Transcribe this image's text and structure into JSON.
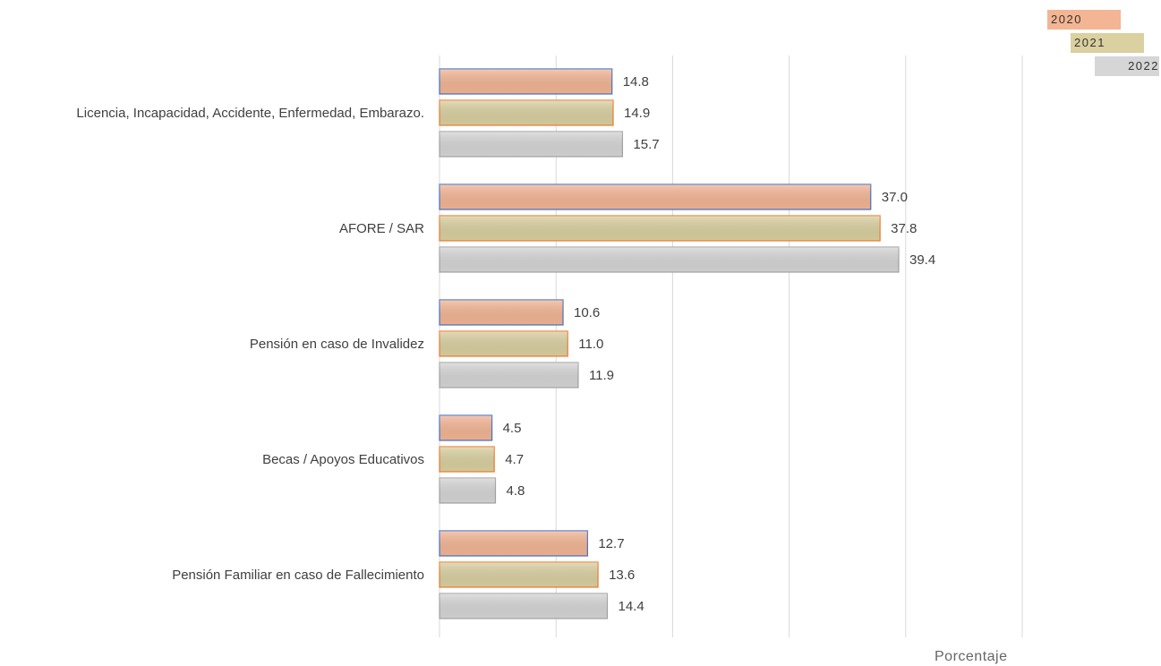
{
  "chart_data": {
    "type": "bar",
    "orientation": "horizontal",
    "categories": [
      "Licencia, Incapacidad, Accidente, Enfermedad, Embarazo.",
      "AFORE / SAR",
      "Pensión en caso de Invalidez",
      "Becas / Apoyos Educativos",
      "Pensión Familiar en caso de Fallecimiento"
    ],
    "series": [
      {
        "name": "2020",
        "values": [
          14.8,
          37.0,
          10.6,
          4.5,
          12.7
        ],
        "color": "#f4b594",
        "stroke": "#4472c4"
      },
      {
        "name": "2021",
        "values": [
          14.9,
          37.8,
          11.0,
          4.7,
          13.6
        ],
        "color": "#dad0a0",
        "stroke": "#ed7d31"
      },
      {
        "name": "2022",
        "values": [
          15.7,
          39.4,
          11.9,
          4.8,
          14.4
        ],
        "color": "#d6d6d6",
        "stroke": "#a5a5a5"
      }
    ],
    "value_labels": [
      [
        "14.8",
        "37.0",
        "10.6",
        "4.5",
        "12.7"
      ],
      [
        "14.9",
        "37.8",
        "11.0",
        "4.7",
        "13.6"
      ],
      [
        "15.7",
        "39.4",
        "11.9",
        "4.8",
        "14.4"
      ]
    ],
    "xlim": [
      0,
      50
    ],
    "grid_step": 10,
    "xlabel": "Porcentaje",
    "grid": true,
    "legend_position": "top-right"
  }
}
